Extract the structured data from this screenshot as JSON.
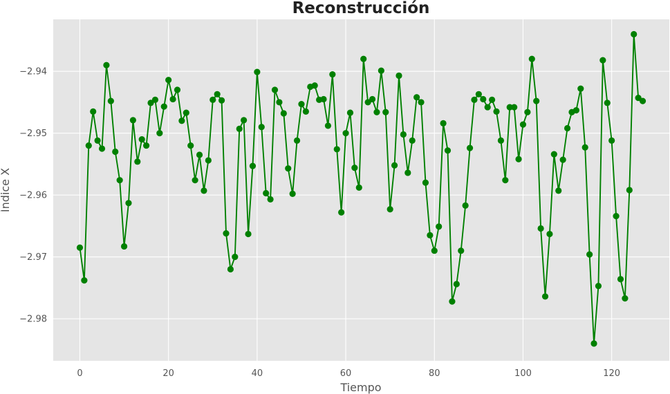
{
  "chart_data": {
    "type": "line",
    "title": "Reconstrucción",
    "xlabel": "Tiempo",
    "ylabel": "Índice X",
    "xlim": [
      -6,
      133
    ],
    "ylim": [
      -2.9868,
      -2.9316
    ],
    "xticks": [
      0,
      20,
      40,
      60,
      80,
      100,
      120
    ],
    "yticks": [
      -2.98,
      -2.97,
      -2.96,
      -2.95,
      -2.94
    ],
    "ytick_labels": [
      "−2.98",
      "−2.97",
      "−2.96",
      "−2.95",
      "−2.94"
    ],
    "grid": true,
    "colors": {
      "series": "#008000",
      "plot_background": "#e5e5e5",
      "grid": "#ffffff"
    },
    "series": [
      {
        "marker": "circle",
        "x": [
          0,
          1,
          2,
          3,
          4,
          5,
          6,
          7,
          8,
          9,
          10,
          11,
          12,
          13,
          14,
          15,
          16,
          17,
          18,
          19,
          20,
          21,
          22,
          23,
          24,
          25,
          26,
          27,
          28,
          29,
          30,
          31,
          32,
          33,
          34,
          35,
          36,
          37,
          38,
          39,
          40,
          41,
          42,
          43,
          44,
          45,
          46,
          47,
          48,
          49,
          50,
          51,
          52,
          53,
          54,
          55,
          56,
          57,
          58,
          59,
          60,
          61,
          62,
          63,
          64,
          65,
          66,
          67,
          68,
          69,
          70,
          71,
          72,
          73,
          74,
          75,
          76,
          77,
          78,
          79,
          80,
          81,
          82,
          83,
          84,
          85,
          86,
          87,
          88,
          89,
          90,
          91,
          92,
          93,
          94,
          95,
          96,
          97,
          98,
          99,
          100,
          101,
          102,
          103,
          104,
          105,
          106,
          107,
          108,
          109,
          110,
          111,
          112,
          113,
          114,
          115,
          116,
          117,
          118,
          119,
          120,
          121,
          122,
          123,
          124,
          125,
          126,
          127
        ],
        "y": [
          -2.9685,
          -2.9738,
          -2.952,
          -2.9465,
          -2.9512,
          -2.9525,
          -2.939,
          -2.9448,
          -2.953,
          -2.9576,
          -2.9683,
          -2.9613,
          -2.9479,
          -2.9546,
          -2.951,
          -2.952,
          -2.9451,
          -2.9446,
          -2.95,
          -2.9457,
          -2.9414,
          -2.9445,
          -2.943,
          -2.948,
          -2.9467,
          -2.952,
          -2.9576,
          -2.9535,
          -2.9593,
          -2.9544,
          -2.9446,
          -2.9437,
          -2.9447,
          -2.9662,
          -2.972,
          -2.97,
          -2.9493,
          -2.9479,
          -2.9663,
          -2.9553,
          -2.9401,
          -2.949,
          -2.9597,
          -2.9607,
          -2.943,
          -2.945,
          -2.9468,
          -2.9557,
          -2.9598,
          -2.9512,
          -2.9453,
          -2.9465,
          -2.9425,
          -2.9423,
          -2.9446,
          -2.9445,
          -2.9488,
          -2.9405,
          -2.9526,
          -2.9628,
          -2.95,
          -2.9467,
          -2.9556,
          -2.9588,
          -2.938,
          -2.945,
          -2.9445,
          -2.9466,
          -2.9399,
          -2.9466,
          -2.9623,
          -2.9552,
          -2.9407,
          -2.9502,
          -2.9564,
          -2.9512,
          -2.9442,
          -2.945,
          -2.958,
          -2.9665,
          -2.969,
          -2.9651,
          -2.9484,
          -2.9528,
          -2.9772,
          -2.9744,
          -2.969,
          -2.9617,
          -2.9524,
          -2.9446,
          -2.9437,
          -2.9445,
          -2.9458,
          -2.9446,
          -2.9465,
          -2.9512,
          -2.9576,
          -2.9458,
          -2.9458,
          -2.9542,
          -2.9486,
          -2.9466,
          -2.938,
          -2.9448,
          -2.9654,
          -2.9764,
          -2.9663,
          -2.9534,
          -2.9593,
          -2.9543,
          -2.9492,
          -2.9466,
          -2.9463,
          -2.9428,
          -2.9523,
          -2.9696,
          -2.984,
          -2.9747,
          -2.9382,
          -2.9451,
          -2.9512,
          -2.9634,
          -2.9736,
          -2.9767,
          -2.9592,
          -2.934,
          -2.9443,
          -2.9448
        ]
      }
    ]
  }
}
